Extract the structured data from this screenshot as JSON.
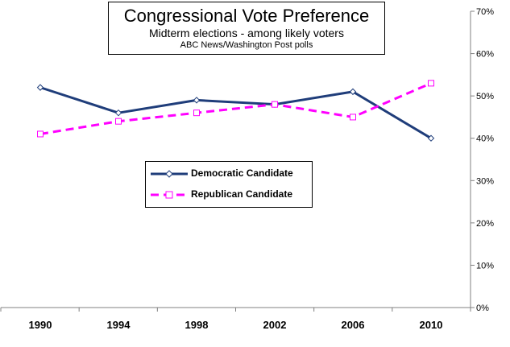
{
  "chart_data": {
    "type": "line",
    "title": "Congressional Vote Preference",
    "subtitle": "Midterm elections - among likely voters",
    "source": "ABC News/Washington Post polls",
    "x": [
      "1990",
      "1994",
      "1998",
      "2002",
      "2006",
      "2010"
    ],
    "ylim": [
      0,
      70
    ],
    "y_ticks": [
      "0%",
      "10%",
      "20%",
      "30%",
      "40%",
      "50%",
      "60%",
      "70%"
    ],
    "y_axis_side": "right",
    "grid": false,
    "legend_placement": "center-left",
    "series": [
      {
        "name": "Democratic Candidate",
        "values": [
          52,
          46,
          49,
          48,
          51,
          40
        ],
        "color": "#1f3d7a",
        "line": "solid",
        "marker": "diamond"
      },
      {
        "name": "Republican Candidate",
        "values": [
          41,
          44,
          46,
          48,
          45,
          53
        ],
        "color": "#ff00ff",
        "line": "dashed",
        "marker": "square"
      }
    ]
  }
}
